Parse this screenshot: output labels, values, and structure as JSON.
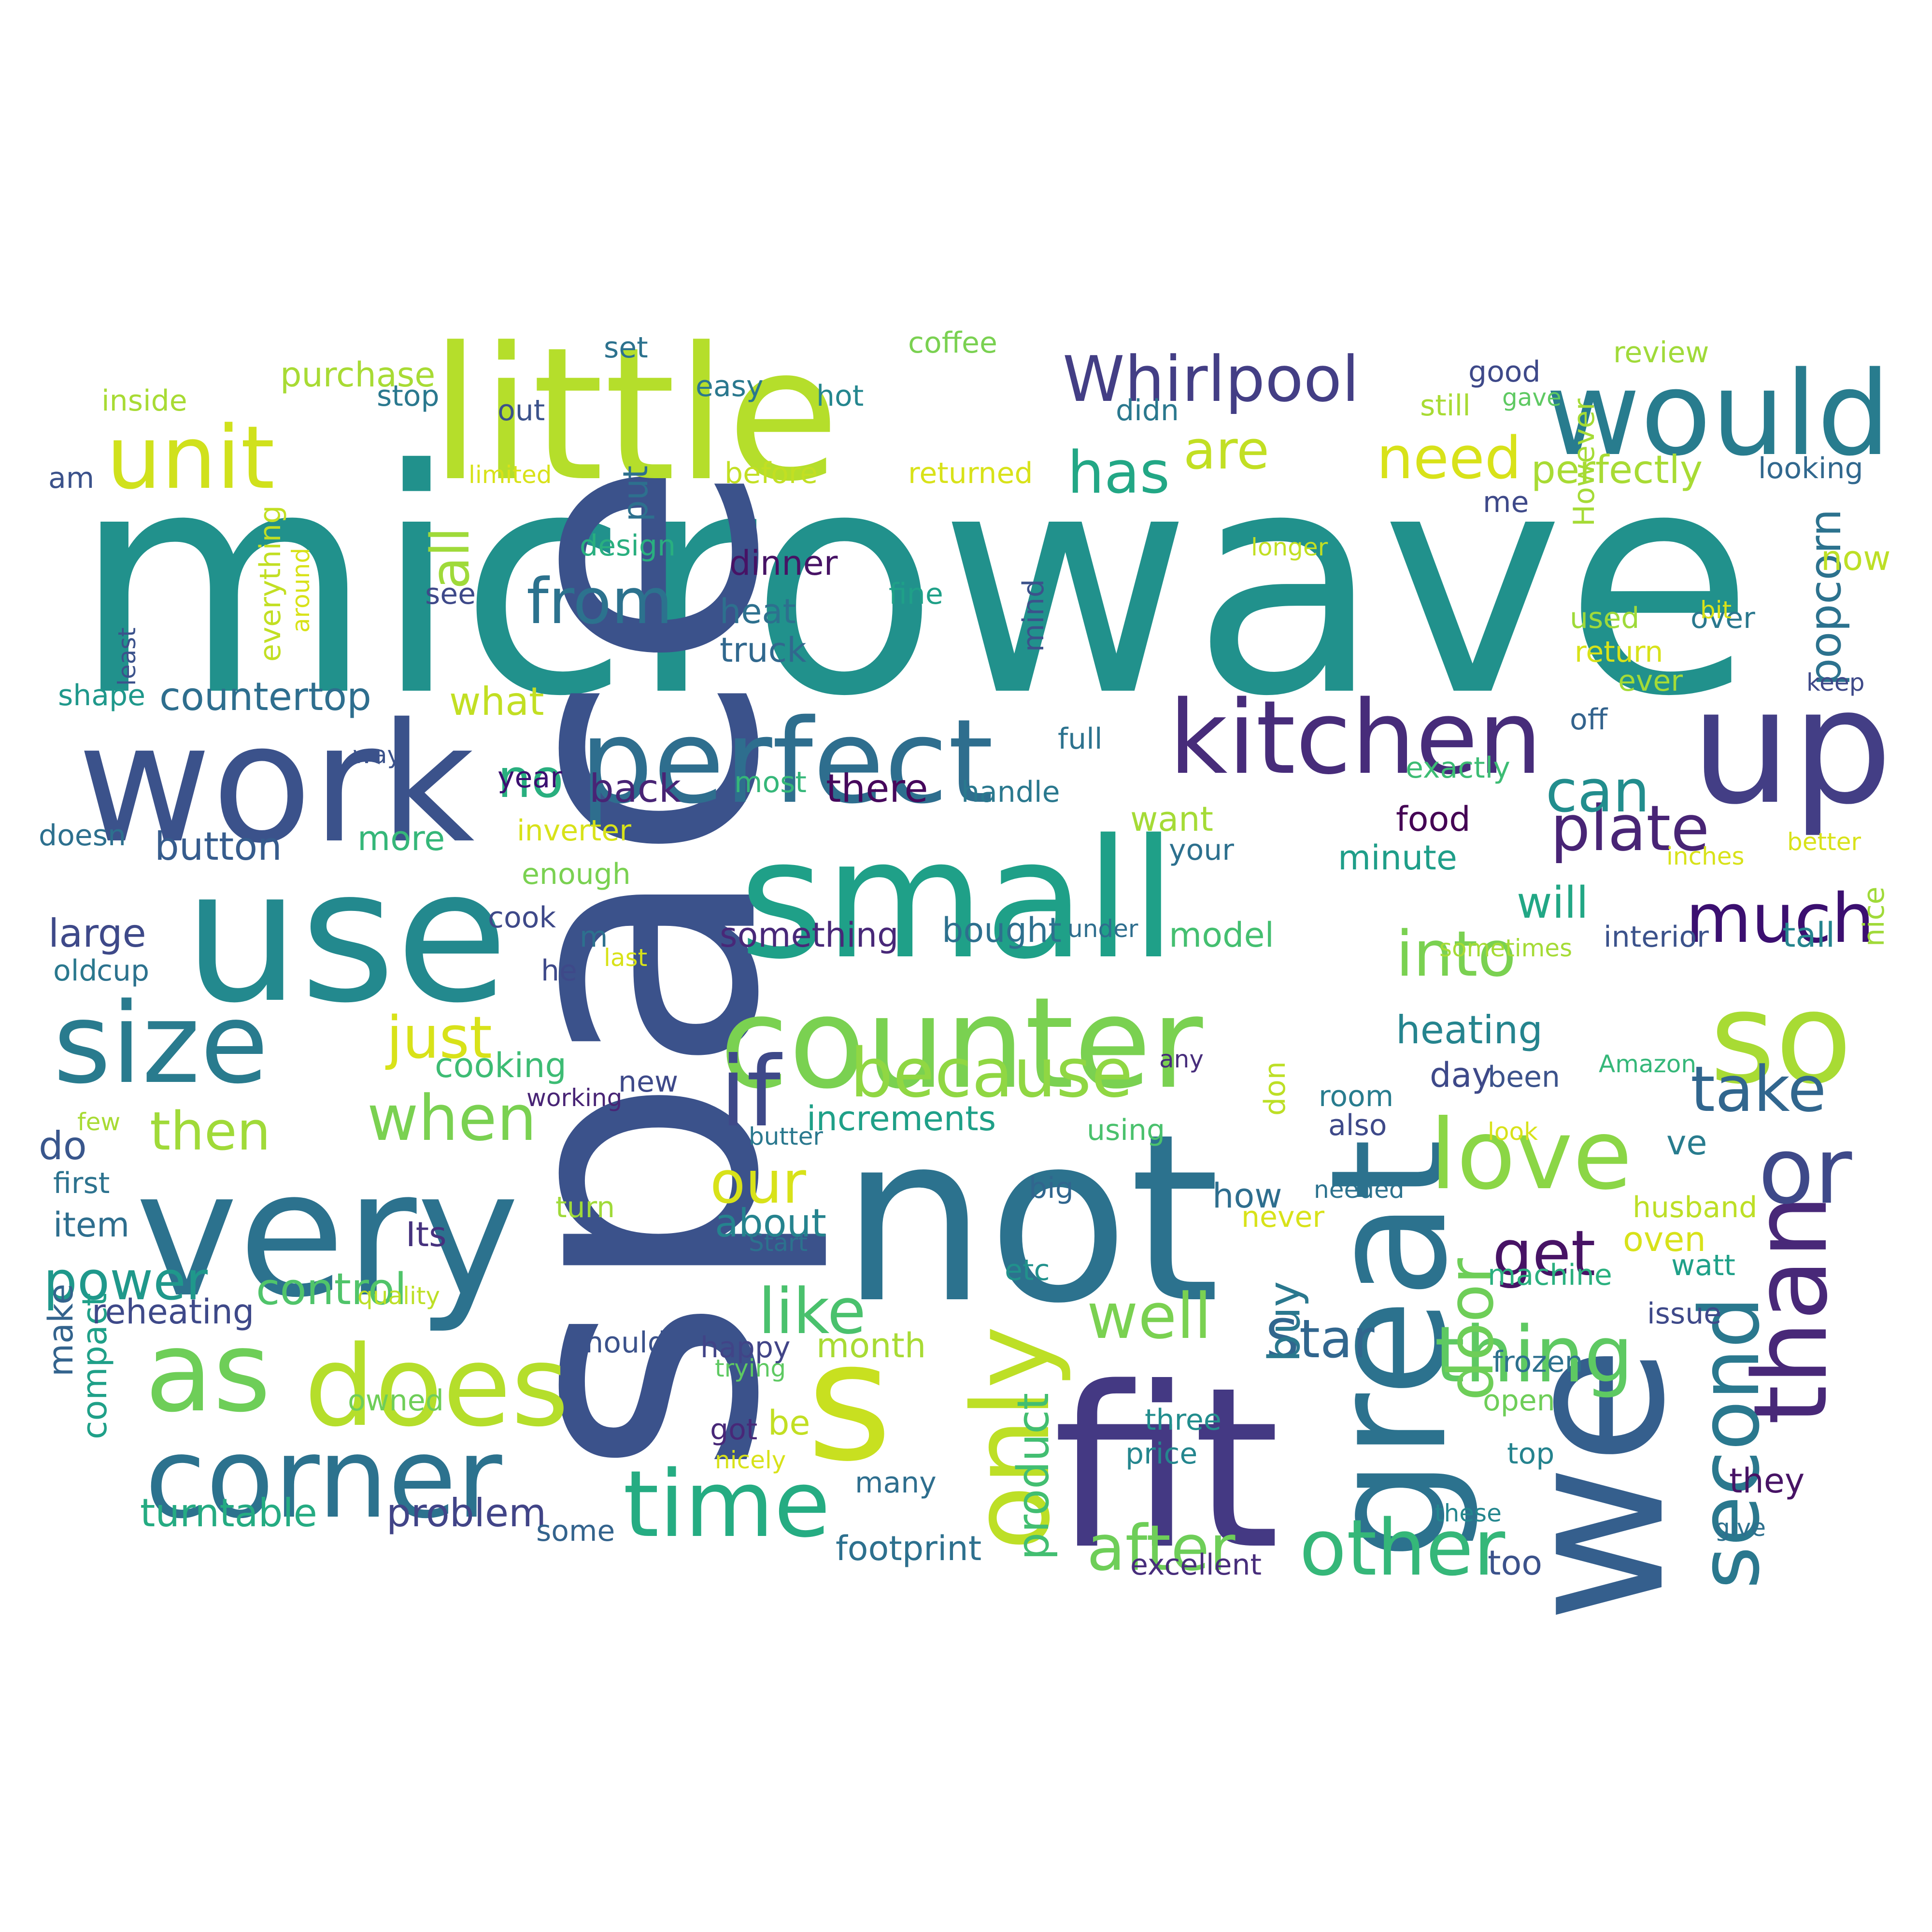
{
  "words": [
    {
      "text": "microwave",
      "color": "#21918c"
    },
    {
      "text": "space",
      "color": "#3b528b"
    },
    {
      "text": "not",
      "color": "#2c728e"
    },
    {
      "text": "fit",
      "color": "#443983"
    },
    {
      "text": "we",
      "color": "#355f8d"
    },
    {
      "text": "great",
      "color": "#2c728e"
    },
    {
      "text": "little",
      "color": "#b5de2b"
    },
    {
      "text": "use",
      "color": "#23898e"
    },
    {
      "text": "very",
      "color": "#2c728e"
    },
    {
      "text": "work",
      "color": "#3b528b"
    },
    {
      "text": "small",
      "color": "#1fa088"
    },
    {
      "text": "s",
      "color": "#c8e020"
    },
    {
      "text": "up",
      "color": "#433e85"
    },
    {
      "text": "perfect",
      "color": "#2e6e8e"
    },
    {
      "text": "counter",
      "color": "#7ad151"
    },
    {
      "text": "would",
      "color": "#287c8e"
    },
    {
      "text": "so",
      "color": "#a8db34"
    },
    {
      "text": "corner",
      "color": "#2c728e"
    },
    {
      "text": "kitchen",
      "color": "#472c7a"
    },
    {
      "text": "size",
      "color": "#297b8e"
    },
    {
      "text": "does",
      "color": "#b5de2b"
    },
    {
      "text": "as",
      "color": "#6ece58"
    },
    {
      "text": "only",
      "color": "#bddf26"
    },
    {
      "text": "than",
      "color": "#482878"
    },
    {
      "text": "unit",
      "color": "#d0e11c"
    },
    {
      "text": "Whirlpool",
      "color": "#433e85"
    },
    {
      "text": "time",
      "color": "#25ac82"
    },
    {
      "text": "love",
      "color": "#8bd646"
    },
    {
      "text": "or",
      "color": "#3e4989"
    },
    {
      "text": "if",
      "color": "#3e4989"
    },
    {
      "text": "because",
      "color": "#90d743"
    },
    {
      "text": "other",
      "color": "#35b779"
    },
    {
      "text": "second",
      "color": "#2a788e"
    },
    {
      "text": "thing",
      "color": "#5ec962"
    },
    {
      "text": "get",
      "color": "#471365"
    },
    {
      "text": "plate",
      "color": "#482475"
    },
    {
      "text": "much",
      "color": "#3b0f70"
    },
    {
      "text": "take",
      "color": "#31668e"
    },
    {
      "text": "well",
      "color": "#7ad151"
    },
    {
      "text": "like",
      "color": "#4ac16d"
    },
    {
      "text": "after",
      "color": "#6ece58"
    },
    {
      "text": "from",
      "color": "#2c728e"
    },
    {
      "text": "into",
      "color": "#7ad151"
    },
    {
      "text": "when",
      "color": "#7ad151"
    },
    {
      "text": "then",
      "color": "#a0da39"
    },
    {
      "text": "just",
      "color": "#d8e219"
    },
    {
      "text": "door",
      "color": "#6ece58"
    },
    {
      "text": "Star",
      "color": "#31668e"
    },
    {
      "text": "need",
      "color": "#d8e219"
    },
    {
      "text": "has",
      "color": "#22a785"
    },
    {
      "text": "are",
      "color": "#c2df23"
    },
    {
      "text": "all",
      "color": "#9fda3a"
    },
    {
      "text": "our",
      "color": "#d8e219"
    },
    {
      "text": "no",
      "color": "#29af7f"
    },
    {
      "text": "can",
      "color": "#228d8d"
    },
    {
      "text": "power",
      "color": "#1f988b"
    },
    {
      "text": "control",
      "color": "#50c46a"
    },
    {
      "text": "problem",
      "color": "#414487"
    },
    {
      "text": "turntable",
      "color": "#25ab82"
    },
    {
      "text": "footprint",
      "color": "#2d708e"
    },
    {
      "text": "product",
      "color": "#42be71"
    },
    {
      "text": "buy",
      "color": "#2a788e"
    },
    {
      "text": "popcorn",
      "color": "#2c728e"
    },
    {
      "text": "countertop",
      "color": "#2e6e8e"
    },
    {
      "text": "heating",
      "color": "#25848e"
    },
    {
      "text": "perfectly",
      "color": "#a8db34"
    },
    {
      "text": "purchase",
      "color": "#a8db34"
    },
    {
      "text": "too",
      "color": "#3b528b"
    },
    {
      "text": "Its",
      "color": "#46327e"
    },
    {
      "text": "about",
      "color": "#25838e"
    },
    {
      "text": "increments",
      "color": "#1fa088"
    },
    {
      "text": "something",
      "color": "#482878"
    },
    {
      "text": "bought",
      "color": "#2d708e"
    },
    {
      "text": "model",
      "color": "#44bf70"
    },
    {
      "text": "minute",
      "color": "#1f9e89"
    },
    {
      "text": "food",
      "color": "#440154"
    },
    {
      "text": "will",
      "color": "#22a785"
    },
    {
      "text": "large",
      "color": "#3e4989"
    },
    {
      "text": "button",
      "color": "#365c8d"
    },
    {
      "text": "cooking",
      "color": "#3dbc74"
    },
    {
      "text": "what",
      "color": "#c2df23"
    },
    {
      "text": "more",
      "color": "#35b779"
    },
    {
      "text": "back",
      "color": "#482475"
    },
    {
      "text": "there",
      "color": "#46085c"
    },
    {
      "text": "year",
      "color": "#3b0f70"
    },
    {
      "text": "most",
      "color": "#35b779"
    },
    {
      "text": "heat",
      "color": "#2d708e"
    },
    {
      "text": "truck",
      "color": "#31688e"
    },
    {
      "text": "dinner",
      "color": "#471365"
    },
    {
      "text": "fine",
      "color": "#1fa088"
    },
    {
      "text": "inverter",
      "color": "#d8e219"
    },
    {
      "text": "handle",
      "color": "#2a788e"
    },
    {
      "text": "want",
      "color": "#a5db36"
    },
    {
      "text": "exactly",
      "color": "#3dbc74"
    },
    {
      "text": "day",
      "color": "#3e4989"
    },
    {
      "text": "room",
      "color": "#287c8e"
    },
    {
      "text": "how",
      "color": "#2e6e8e"
    },
    {
      "text": "ve",
      "color": "#287c8e"
    },
    {
      "text": "oven",
      "color": "#d8e219"
    },
    {
      "text": "husband",
      "color": "#bddf26"
    },
    {
      "text": "machine",
      "color": "#2ab07f"
    },
    {
      "text": "watt",
      "color": "#1fa088"
    },
    {
      "text": "issue",
      "color": "#3e4989"
    },
    {
      "text": "frozen",
      "color": "#2d708e"
    },
    {
      "text": "open",
      "color": "#6ece58"
    },
    {
      "text": "top",
      "color": "#25838e"
    },
    {
      "text": "they",
      "color": "#471365"
    },
    {
      "text": "give",
      "color": "#2d708e"
    },
    {
      "text": "these",
      "color": "#24868e"
    },
    {
      "text": "excellent",
      "color": "#472d7b"
    },
    {
      "text": "price",
      "color": "#24868e"
    },
    {
      "text": "three",
      "color": "#228d8d"
    },
    {
      "text": "many",
      "color": "#2e6e8e"
    },
    {
      "text": "be",
      "color": "#c2df23"
    },
    {
      "text": "got",
      "color": "#482878"
    },
    {
      "text": "nicely",
      "color": "#d8e219"
    },
    {
      "text": "some",
      "color": "#33638d"
    },
    {
      "text": "trying",
      "color": "#5ec962"
    },
    {
      "text": "owned",
      "color": "#6ece58"
    },
    {
      "text": "happy",
      "color": "#414487"
    },
    {
      "text": "month",
      "color": "#a8db34"
    },
    {
      "text": "should",
      "color": "#3b528b"
    },
    {
      "text": "compact",
      "color": "#1fa088"
    },
    {
      "text": "make",
      "color": "#33638d"
    },
    {
      "text": "reheating",
      "color": "#3e4989"
    },
    {
      "text": "quality",
      "color": "#bddf26"
    },
    {
      "text": "item",
      "color": "#2e6e8e"
    },
    {
      "text": "first",
      "color": "#2c728e"
    },
    {
      "text": "do",
      "color": "#39568c"
    },
    {
      "text": "few",
      "color": "#a8db34"
    },
    {
      "text": "turn",
      "color": "#a0da39"
    },
    {
      "text": "Start",
      "color": "#2c728e"
    },
    {
      "text": "etc",
      "color": "#21918c"
    },
    {
      "text": "big",
      "color": "#31668e"
    },
    {
      "text": "never",
      "color": "#d8e219"
    },
    {
      "text": "needed",
      "color": "#2c728e"
    },
    {
      "text": "butter",
      "color": "#2a788e"
    },
    {
      "text": "also",
      "color": "#3e4989"
    },
    {
      "text": "using",
      "color": "#4ac16d"
    },
    {
      "text": "look",
      "color": "#d8e219"
    },
    {
      "text": "been",
      "color": "#3b528b"
    },
    {
      "text": "Amazon",
      "color": "#35b779"
    },
    {
      "text": "new",
      "color": "#3e4989"
    },
    {
      "text": "working",
      "color": "#482475"
    },
    {
      "text": "don",
      "color": "#bddf26"
    },
    {
      "text": "any",
      "color": "#472d7b"
    },
    {
      "text": "he",
      "color": "#3e4989"
    },
    {
      "text": "last",
      "color": "#d8e219"
    },
    {
      "text": "old",
      "color": "#2a788e"
    },
    {
      "text": "cup",
      "color": "#2c728e"
    },
    {
      "text": "m",
      "color": "#2d708e"
    },
    {
      "text": "doesn",
      "color": "#2d708e"
    },
    {
      "text": "enough",
      "color": "#7ad151"
    },
    {
      "text": "cook",
      "color": "#3e4989"
    },
    {
      "text": "under",
      "color": "#2e6e8e"
    },
    {
      "text": "sometimes",
      "color": "#a5db36"
    },
    {
      "text": "interior",
      "color": "#3b528b"
    },
    {
      "text": "tall",
      "color": "#25848e"
    },
    {
      "text": "nice",
      "color": "#a0da39"
    },
    {
      "text": "inches",
      "color": "#d8e219"
    },
    {
      "text": "better",
      "color": "#d8e219"
    },
    {
      "text": "your",
      "color": "#2d708e"
    },
    {
      "text": "full",
      "color": "#2c728e"
    },
    {
      "text": "off",
      "color": "#33638d"
    },
    {
      "text": "ever",
      "color": "#a5db36"
    },
    {
      "text": "return",
      "color": "#d8e219"
    },
    {
      "text": "used",
      "color": "#9fda3a"
    },
    {
      "text": "over",
      "color": "#2a788e"
    },
    {
      "text": "bit",
      "color": "#d8e219"
    },
    {
      "text": "keep",
      "color": "#3e4989"
    },
    {
      "text": "However",
      "color": "#a5db36"
    },
    {
      "text": "now",
      "color": "#bddf26"
    },
    {
      "text": "longer",
      "color": "#c2df23"
    },
    {
      "text": "me",
      "color": "#3e4989"
    },
    {
      "text": "looking",
      "color": "#31688e"
    },
    {
      "text": "returned",
      "color": "#d8e219"
    },
    {
      "text": "before",
      "color": "#c2df23"
    },
    {
      "text": "limited",
      "color": "#d8e219"
    },
    {
      "text": "put",
      "color": "#2d708e"
    },
    {
      "text": "design",
      "color": "#29af7f"
    },
    {
      "text": "see",
      "color": "#3e4989"
    },
    {
      "text": "mind",
      "color": "#3b528b"
    },
    {
      "text": "everything",
      "color": "#c2df23"
    },
    {
      "text": "around",
      "color": "#d8e219"
    },
    {
      "text": "least",
      "color": "#3b528b"
    },
    {
      "text": "shape",
      "color": "#1f988b"
    },
    {
      "text": "way",
      "color": "#3b528b"
    },
    {
      "text": "am",
      "color": "#3b528b"
    },
    {
      "text": "inside",
      "color": "#a8db34"
    },
    {
      "text": "stop",
      "color": "#2a788e"
    },
    {
      "text": "set",
      "color": "#2c728e"
    },
    {
      "text": "out",
      "color": "#3b528b"
    },
    {
      "text": "easy",
      "color": "#2a788e"
    },
    {
      "text": "hot",
      "color": "#24868e"
    },
    {
      "text": "coffee",
      "color": "#7ad151"
    },
    {
      "text": "didn",
      "color": "#2a788e"
    },
    {
      "text": "good",
      "color": "#3e4989"
    },
    {
      "text": "gave",
      "color": "#5ec962"
    },
    {
      "text": "still",
      "color": "#a8db34"
    },
    {
      "text": "review",
      "color": "#a0da39"
    }
  ]
}
